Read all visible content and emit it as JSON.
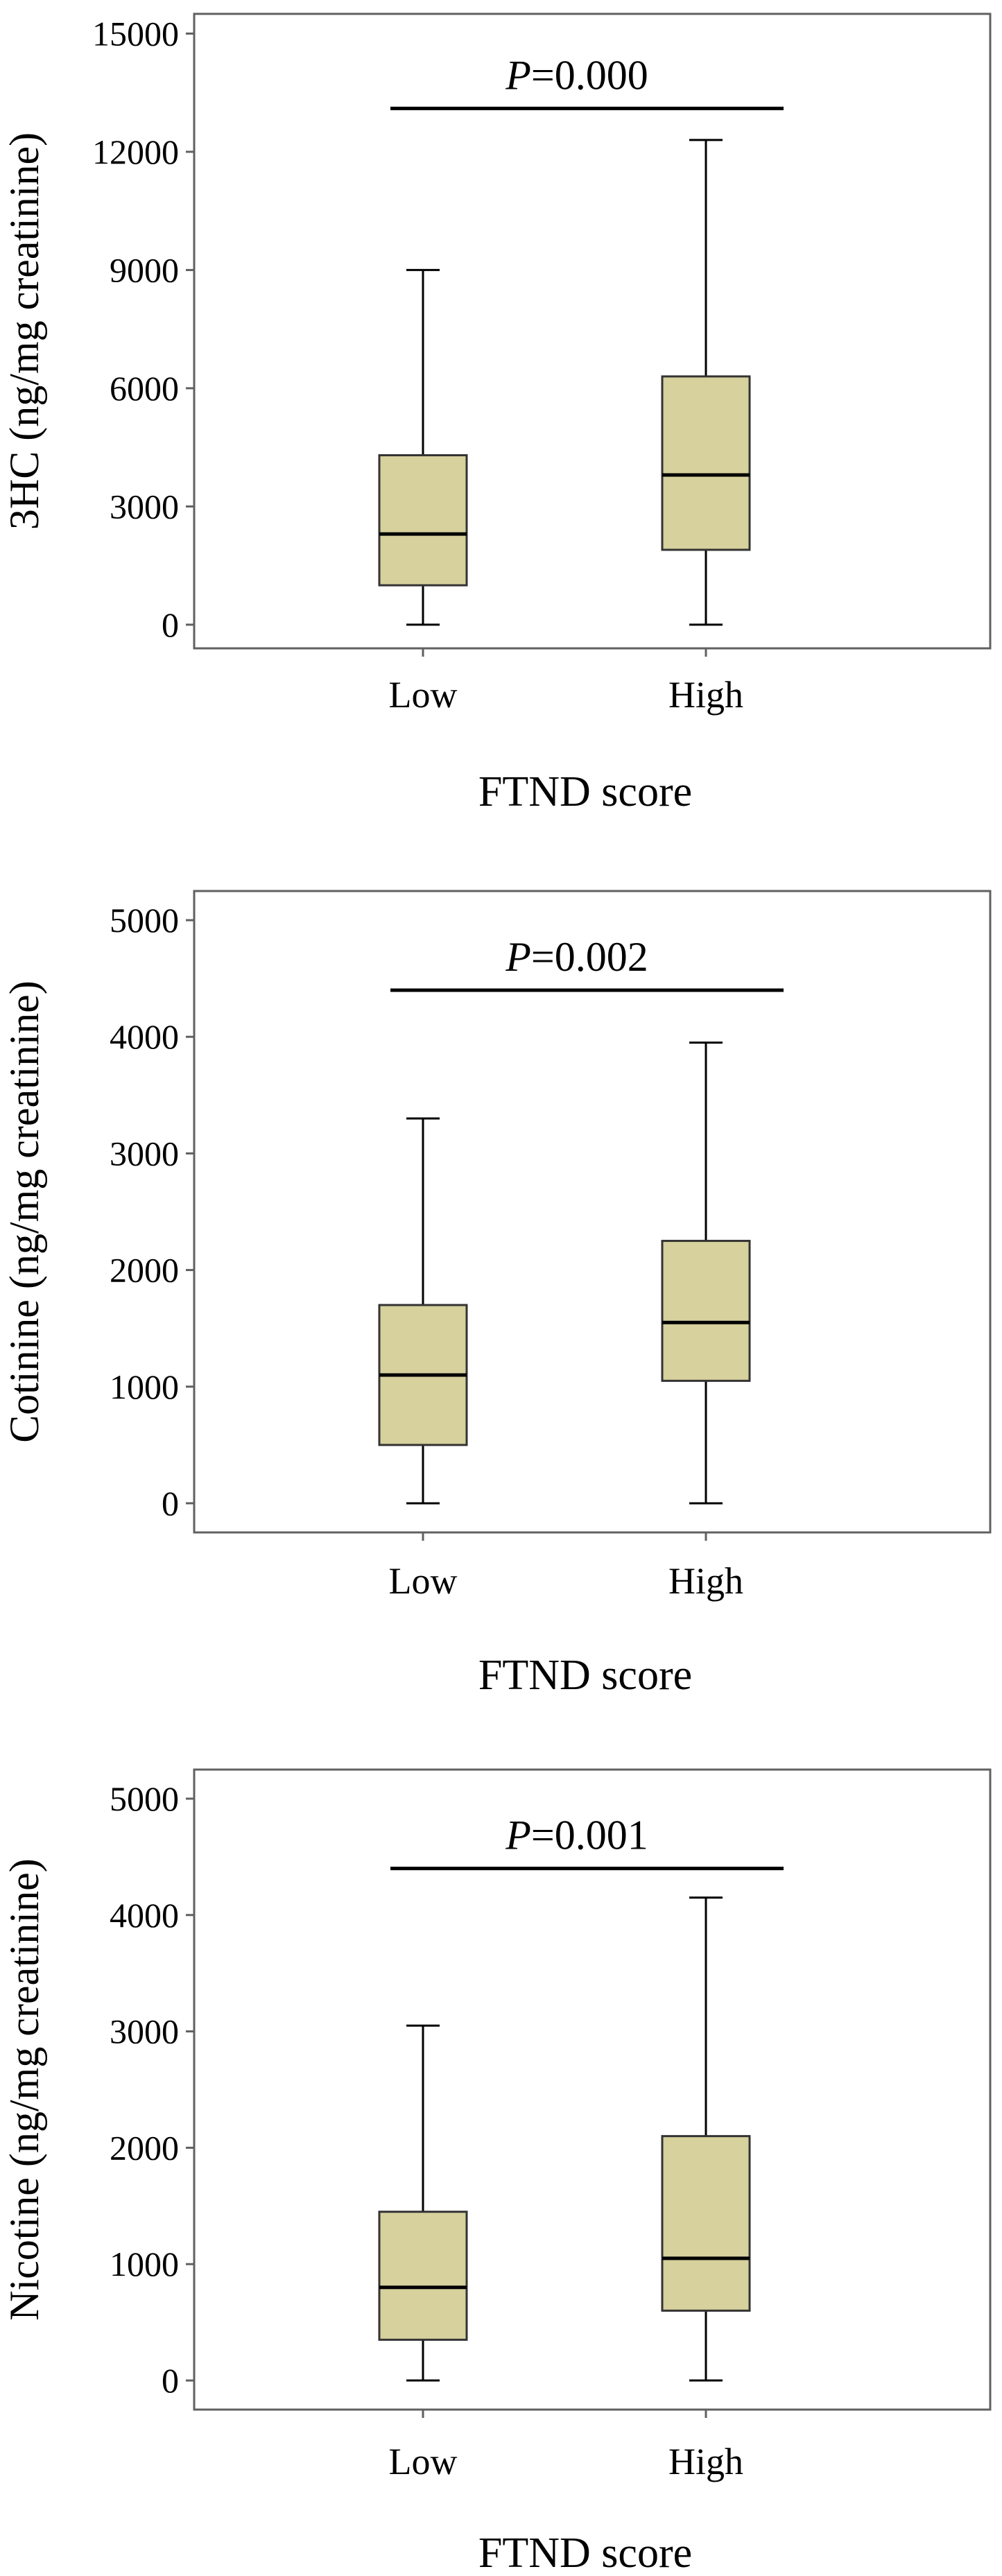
{
  "styles": {
    "box_fill": "#d6d19d",
    "line_color": "#000000",
    "frame_color": "#606060"
  },
  "chart_data": [
    {
      "type": "box",
      "categories": [
        "Low",
        "High"
      ],
      "xlabel": "FTND   score",
      "ylabel": "3HC (ng/mg creatinine)",
      "ylim": [
        -600,
        15500
      ],
      "yticks": [
        0,
        3000,
        6000,
        9000,
        12000,
        15000
      ],
      "boxes": [
        {
          "category": "Low",
          "min": 0,
          "q1": 1000,
          "median": 2300,
          "q3": 4300,
          "max": 9000
        },
        {
          "category": "High",
          "min": 0,
          "q1": 1900,
          "median": 3800,
          "q3": 6300,
          "max": 12300
        }
      ],
      "annotation": {
        "p_symbol": "P",
        "p_value": "=0.000",
        "bracket_y": 13100
      }
    },
    {
      "type": "box",
      "categories": [
        "Low",
        "High"
      ],
      "xlabel": "FTND   score",
      "ylabel": "Cotinine (ng/mg creatinine)",
      "ylim": [
        -250,
        5250
      ],
      "yticks": [
        0,
        1000,
        2000,
        3000,
        4000,
        5000
      ],
      "boxes": [
        {
          "category": "Low",
          "min": 0,
          "q1": 500,
          "median": 1100,
          "q3": 1700,
          "max": 3300
        },
        {
          "category": "High",
          "min": 0,
          "q1": 1050,
          "median": 1550,
          "q3": 2250,
          "max": 3950
        }
      ],
      "annotation": {
        "p_symbol": "P",
        "p_value": "=0.002",
        "bracket_y": 4400
      }
    },
    {
      "type": "box",
      "categories": [
        "Low",
        "High"
      ],
      "xlabel": "FTND   score",
      "ylabel": "Nicotine (ng/mg creatinine)",
      "ylim": [
        -250,
        5250
      ],
      "yticks": [
        0,
        1000,
        2000,
        3000,
        4000,
        5000
      ],
      "boxes": [
        {
          "category": "Low",
          "min": 0,
          "q1": 350,
          "median": 800,
          "q3": 1450,
          "max": 3050
        },
        {
          "category": "High",
          "min": 0,
          "q1": 600,
          "median": 1050,
          "q3": 2100,
          "max": 4150
        }
      ],
      "annotation": {
        "p_symbol": "P",
        "p_value": "=0.001",
        "bracket_y": 4400
      }
    }
  ]
}
